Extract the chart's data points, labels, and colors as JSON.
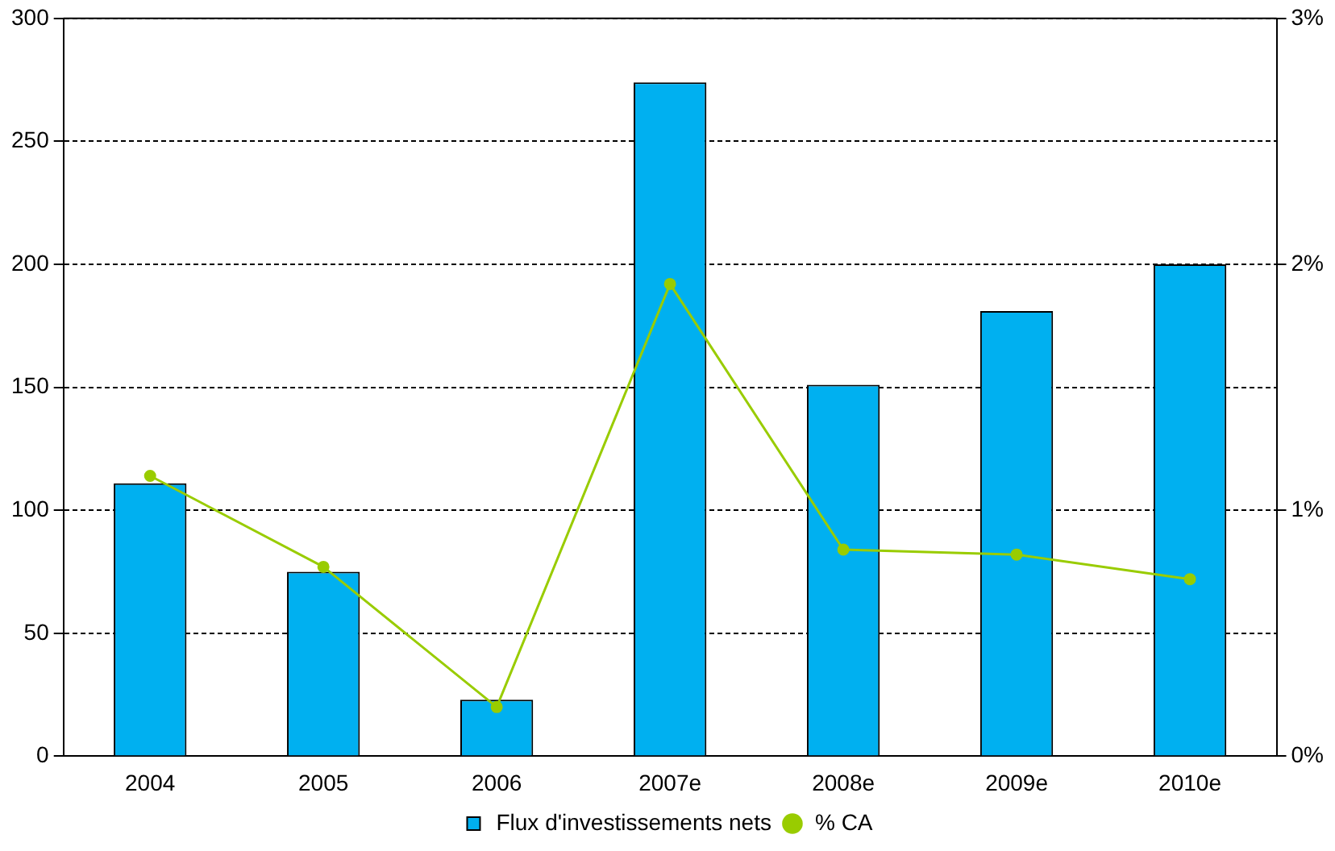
{
  "chart_data": {
    "type": "bar",
    "categories": [
      "2004",
      "2005",
      "2006",
      "2007e",
      "2008e",
      "2009e",
      "2010e"
    ],
    "series": [
      {
        "name": "Flux d'investissements nets",
        "color": "#00b0f0",
        "values": [
          111,
          75,
          23,
          274,
          151,
          181,
          200
        ]
      },
      {
        "name": "% CA",
        "type": "line",
        "axis": "y2",
        "color": "#99cc00",
        "values": [
          1.14,
          0.77,
          0.2,
          1.92,
          0.84,
          0.82,
          0.72
        ]
      }
    ],
    "ylim": [
      0,
      300
    ],
    "yticks": [
      0,
      50,
      100,
      150,
      200,
      250,
      300
    ],
    "y2lim": [
      0,
      3
    ],
    "y2ticks": [
      {
        "value": 0,
        "label": "0%"
      },
      {
        "value": 1,
        "label": "1%"
      },
      {
        "value": 2,
        "label": "2%"
      },
      {
        "value": 3,
        "label": "3%"
      }
    ],
    "grid": "y",
    "legend": "bottom",
    "marker": "circle"
  }
}
